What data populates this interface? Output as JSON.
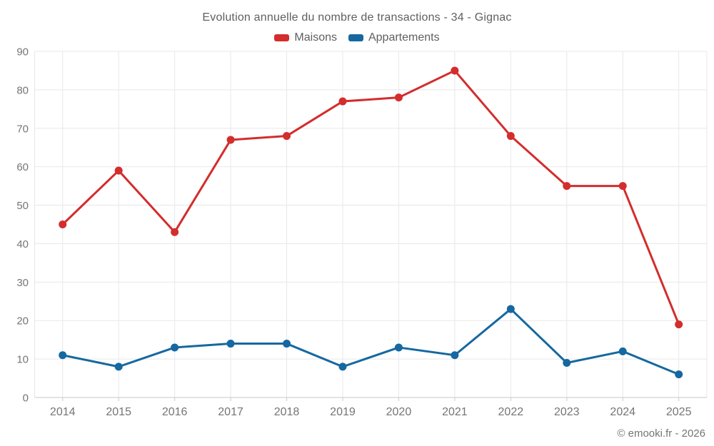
{
  "footer": {
    "copyright": "© emooki.fr - 2026"
  },
  "chart_data": {
    "type": "line",
    "title": "Evolution annuelle du nombre de transactions - 34 - Gignac",
    "categories": [
      "2014",
      "2015",
      "2016",
      "2017",
      "2018",
      "2019",
      "2020",
      "2021",
      "2022",
      "2023",
      "2024",
      "2025"
    ],
    "series": [
      {
        "name": "Maisons",
        "color": "#d32d2d",
        "values": [
          45,
          59,
          43,
          67,
          68,
          77,
          78,
          85,
          68,
          55,
          55,
          19
        ]
      },
      {
        "name": "Appartements",
        "color": "#1568a0",
        "values": [
          11,
          8,
          13,
          14,
          14,
          8,
          13,
          11,
          23,
          9,
          12,
          6
        ]
      }
    ],
    "ylim": [
      0,
      90
    ],
    "ytick_step": 10,
    "grid": true,
    "legend_position": "top",
    "colors": {
      "grid": "#e8e8e8",
      "axis": "#c9c9c9",
      "tick_label": "#757575",
      "title_text": "#5f5f5f"
    }
  }
}
